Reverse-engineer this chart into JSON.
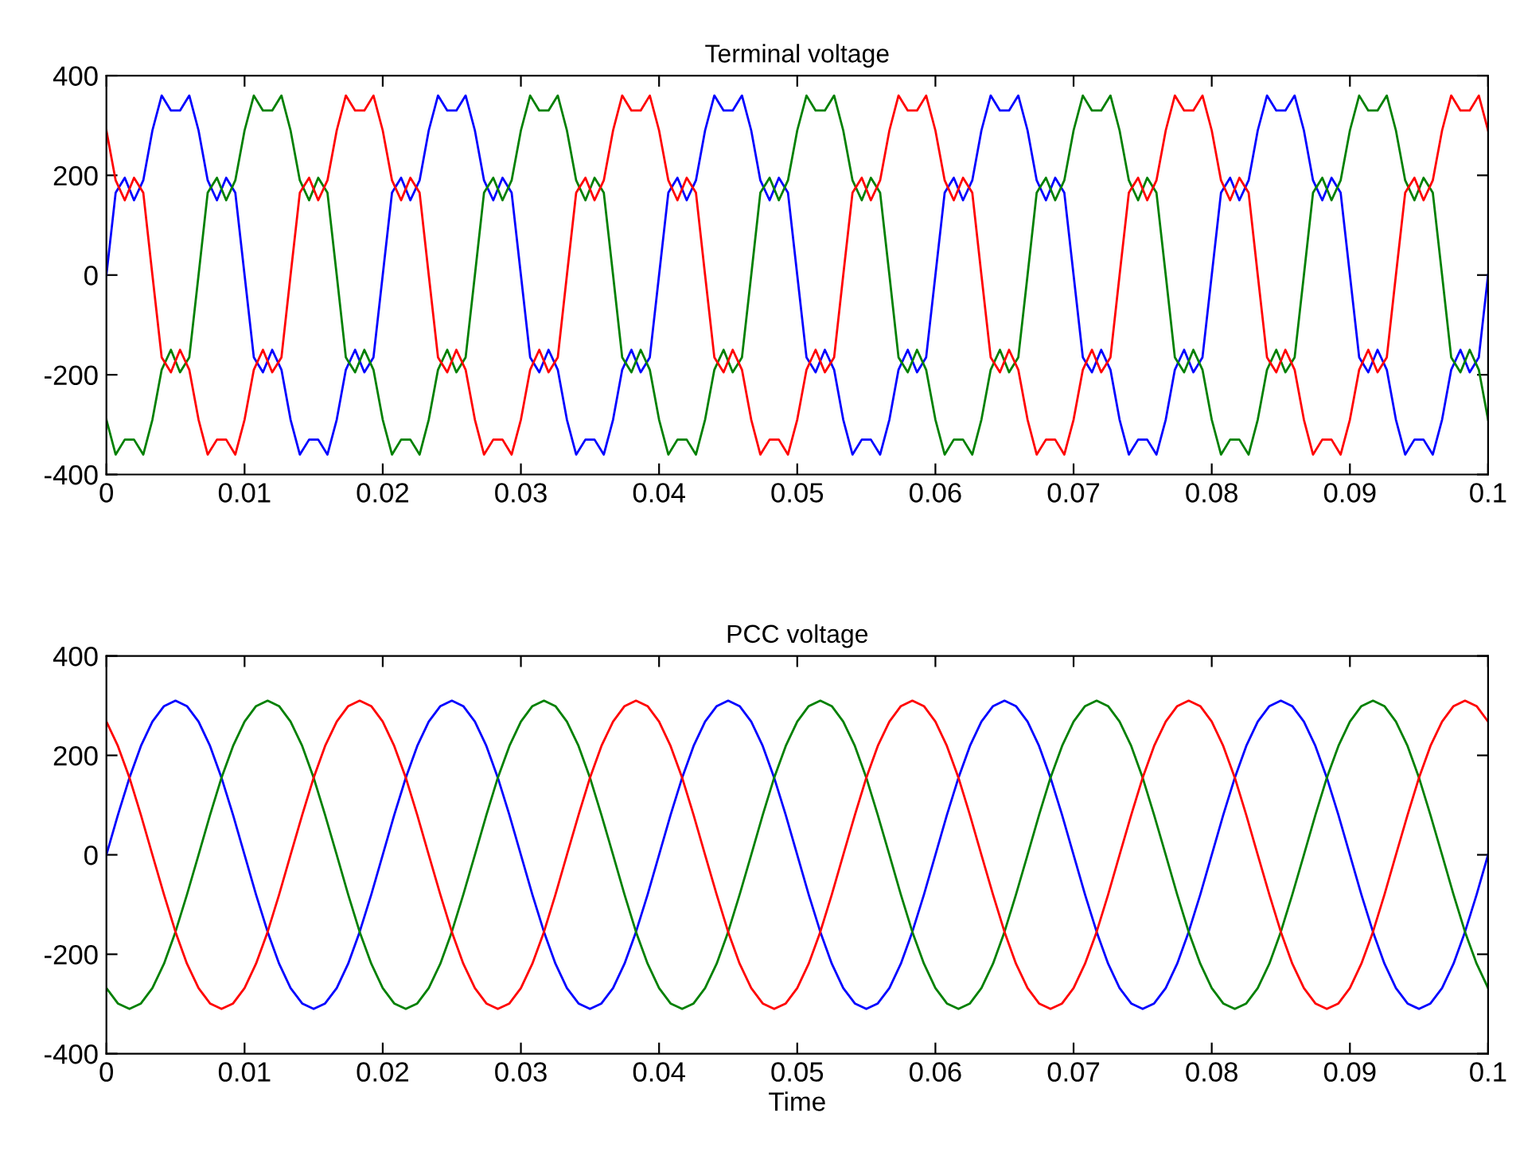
{
  "chart_data": [
    {
      "type": "line",
      "title": "Terminal voltage",
      "x": [
        0,
        0.00067,
        0.00133,
        0.002,
        0.00267,
        0.00333,
        0.004,
        0.00467,
        0.00533,
        0.006,
        0.00667,
        0.00733,
        0.008,
        0.00867,
        0.00933,
        0.01,
        0.01067,
        0.01133,
        0.012,
        0.01267,
        0.01333,
        0.014,
        0.01467,
        0.01533,
        0.016,
        0.01667,
        0.01733,
        0.018,
        0.01867,
        0.01933,
        0.02,
        0.02067,
        0.02133,
        0.022,
        0.02267,
        0.02333,
        0.024,
        0.02467,
        0.02533,
        0.026,
        0.02667,
        0.02733,
        0.028,
        0.02867,
        0.02933,
        0.03,
        0.03067,
        0.03133,
        0.032,
        0.03267,
        0.03333,
        0.034,
        0.03467,
        0.03533,
        0.036,
        0.03667,
        0.03733,
        0.038,
        0.03867,
        0.03933,
        0.04,
        0.04067,
        0.04133,
        0.042,
        0.04267,
        0.04333,
        0.044,
        0.04467,
        0.04533,
        0.046,
        0.04667,
        0.04733,
        0.048,
        0.04867,
        0.04933,
        0.05,
        0.05067,
        0.05133,
        0.052,
        0.05267,
        0.05333,
        0.054,
        0.05467,
        0.05533,
        0.056,
        0.05667,
        0.05733,
        0.058,
        0.05867,
        0.05933,
        0.06,
        0.06067,
        0.06133,
        0.062,
        0.06267,
        0.06333,
        0.064,
        0.06467,
        0.06533,
        0.066,
        0.06667,
        0.06733,
        0.068,
        0.06867,
        0.06933,
        0.07,
        0.07067,
        0.07133,
        0.072,
        0.07267,
        0.07333,
        0.074,
        0.07467,
        0.07533,
        0.076,
        0.07667,
        0.07733,
        0.078,
        0.07867,
        0.07933,
        0.08,
        0.08067,
        0.08133,
        0.082,
        0.08267,
        0.08333,
        0.084,
        0.08467,
        0.08533,
        0.086,
        0.08667,
        0.08733,
        0.088,
        0.08867,
        0.08933,
        0.09,
        0.09067,
        0.09133,
        0.092,
        0.09267,
        0.09333,
        0.094,
        0.09467,
        0.09533,
        0.096,
        0.09667,
        0.09733,
        0.098,
        0.09867,
        0.09933,
        0.1
      ],
      "series": [
        {
          "color": "#0000ff",
          "values": [
            0,
            165,
            195,
            150,
            190,
            290,
            360,
            330,
            330,
            360,
            290,
            190,
            150,
            195,
            165,
            0,
            -165,
            -195,
            -150,
            -190,
            -290,
            -360,
            -330,
            -330,
            -360,
            -290,
            -190,
            -150,
            -195,
            -165,
            0,
            165,
            195,
            150,
            190,
            290,
            360,
            330,
            330,
            360,
            290,
            190,
            150,
            195,
            165,
            0,
            -165,
            -195,
            -150,
            -190,
            -290,
            -360,
            -330,
            -330,
            -360,
            -290,
            -190,
            -150,
            -195,
            -165,
            0,
            165,
            195,
            150,
            190,
            290,
            360,
            330,
            330,
            360,
            290,
            190,
            150,
            195,
            165,
            0,
            -165,
            -195,
            -150,
            -190,
            -290,
            -360,
            -330,
            -330,
            -360,
            -290,
            -190,
            -150,
            -195,
            -165,
            0,
            165,
            195,
            150,
            190,
            290,
            360,
            330,
            330,
            360,
            290,
            190,
            150,
            195,
            165,
            0,
            -165,
            -195,
            -150,
            -190,
            -290,
            -360,
            -330,
            -330,
            -360,
            -290,
            -190,
            -150,
            -195,
            -165,
            0,
            165,
            195,
            150,
            190,
            290,
            360,
            330,
            330,
            360,
            290,
            190,
            150,
            195,
            165,
            0,
            -165,
            -195,
            -150,
            -190,
            -290,
            -360,
            -330,
            -330,
            -360,
            -290,
            -190,
            -150,
            -195,
            -165,
            0
          ]
        },
        {
          "color": "#008000",
          "values": [
            -290,
            -360,
            -330,
            -330,
            -360,
            -290,
            -190,
            -150,
            -195,
            -165,
            0,
            165,
            195,
            150,
            190,
            290,
            360,
            330,
            330,
            360,
            290,
            190,
            150,
            195,
            165,
            0,
            -165,
            -195,
            -150,
            -190,
            -290,
            -360,
            -330,
            -330,
            -360,
            -290,
            -190,
            -150,
            -195,
            -165,
            0,
            165,
            195,
            150,
            190,
            290,
            360,
            330,
            330,
            360,
            290,
            190,
            150,
            195,
            165,
            0,
            -165,
            -195,
            -150,
            -190,
            -290,
            -360,
            -330,
            -330,
            -360,
            -290,
            -190,
            -150,
            -195,
            -165,
            0,
            165,
            195,
            150,
            190,
            290,
            360,
            330,
            330,
            360,
            290,
            190,
            150,
            195,
            165,
            0,
            -165,
            -195,
            -150,
            -190,
            -290,
            -360,
            -330,
            -330,
            -360,
            -290,
            -190,
            -150,
            -195,
            -165,
            0,
            165,
            195,
            150,
            190,
            290,
            360,
            330,
            330,
            360,
            290,
            190,
            150,
            195,
            165,
            0,
            -165,
            -195,
            -150,
            -190,
            -290,
            -360,
            -330,
            -330,
            -360,
            -290,
            -190,
            -150,
            -195,
            -165,
            0,
            165,
            195,
            150,
            190,
            290,
            360,
            330,
            330,
            360,
            290,
            190,
            150,
            195,
            165,
            0,
            -165,
            -195,
            -150,
            -190,
            -290
          ]
        },
        {
          "color": "#ff0000",
          "values": [
            290,
            190,
            150,
            195,
            165,
            0,
            -165,
            -195,
            -150,
            -190,
            -290,
            -360,
            -330,
            -330,
            -360,
            -290,
            -190,
            -150,
            -195,
            -165,
            0,
            165,
            195,
            150,
            190,
            290,
            360,
            330,
            330,
            360,
            290,
            190,
            150,
            195,
            165,
            0,
            -165,
            -195,
            -150,
            -190,
            -290,
            -360,
            -330,
            -330,
            -360,
            -290,
            -190,
            -150,
            -195,
            -165,
            0,
            165,
            195,
            150,
            190,
            290,
            360,
            330,
            330,
            360,
            290,
            190,
            150,
            195,
            165,
            0,
            -165,
            -195,
            -150,
            -190,
            -290,
            -360,
            -330,
            -330,
            -360,
            -290,
            -190,
            -150,
            -195,
            -165,
            0,
            165,
            195,
            150,
            190,
            290,
            360,
            330,
            330,
            360,
            290,
            190,
            150,
            195,
            165,
            0,
            -165,
            -195,
            -150,
            -190,
            -290,
            -360,
            -330,
            -330,
            -360,
            -290,
            -190,
            -150,
            -195,
            -165,
            0,
            165,
            195,
            150,
            190,
            290,
            360,
            330,
            330,
            360,
            290,
            190,
            150,
            195,
            165,
            0,
            -165,
            -195,
            -150,
            -190,
            -290,
            -360,
            -330,
            -330,
            -360,
            -290,
            -190,
            -150,
            -195,
            -165,
            0,
            165,
            195,
            150,
            190,
            290,
            360,
            330,
            330,
            360,
            290
          ]
        }
      ],
      "xlim": [
        0,
        0.1
      ],
      "ylim": [
        -400,
        400
      ],
      "xticks": [
        0,
        0.01,
        0.02,
        0.03,
        0.04,
        0.05,
        0.06,
        0.07,
        0.08,
        0.09,
        0.1
      ],
      "yticks": [
        -400,
        -200,
        0,
        200,
        400
      ]
    },
    {
      "type": "line",
      "title": "PCC voltage",
      "xlabel": "Time",
      "x": [
        0,
        0.00083,
        0.00167,
        0.0025,
        0.00333,
        0.00417,
        0.005,
        0.00583,
        0.00667,
        0.0075,
        0.00833,
        0.00917,
        0.01,
        0.01083,
        0.01167,
        0.0125,
        0.01333,
        0.01417,
        0.015,
        0.01583,
        0.01667,
        0.0175,
        0.01833,
        0.01917,
        0.02,
        0.02083,
        0.02167,
        0.0225,
        0.02333,
        0.02417,
        0.025,
        0.02583,
        0.02667,
        0.0275,
        0.02833,
        0.02917,
        0.03,
        0.03083,
        0.03167,
        0.0325,
        0.03333,
        0.03417,
        0.035,
        0.03583,
        0.03667,
        0.0375,
        0.03833,
        0.03917,
        0.04,
        0.04083,
        0.04167,
        0.0425,
        0.04333,
        0.04417,
        0.045,
        0.04583,
        0.04667,
        0.0475,
        0.04833,
        0.04917,
        0.05,
        0.05083,
        0.05167,
        0.0525,
        0.05333,
        0.05417,
        0.055,
        0.05583,
        0.05667,
        0.0575,
        0.05833,
        0.05917,
        0.06,
        0.06083,
        0.06167,
        0.0625,
        0.06333,
        0.06417,
        0.065,
        0.06583,
        0.06667,
        0.0675,
        0.06833,
        0.06917,
        0.07,
        0.07083,
        0.07167,
        0.0725,
        0.07333,
        0.07417,
        0.075,
        0.07583,
        0.07667,
        0.0775,
        0.07833,
        0.07917,
        0.08,
        0.08083,
        0.08167,
        0.0825,
        0.08333,
        0.08417,
        0.085,
        0.08583,
        0.08667,
        0.0875,
        0.08833,
        0.08917,
        0.09,
        0.09083,
        0.09167,
        0.0925,
        0.09333,
        0.09417,
        0.095,
        0.09583,
        0.09667,
        0.0975,
        0.09833,
        0.09917,
        0.1
      ],
      "series": [
        {
          "color": "#0000ff",
          "values": [
            0,
            80,
            155,
            219,
            268,
            299,
            310,
            299,
            268,
            219,
            155,
            80,
            0,
            -80,
            -155,
            -219,
            -268,
            -299,
            -310,
            -299,
            -268,
            -219,
            -155,
            -80,
            0,
            80,
            155,
            219,
            268,
            299,
            310,
            299,
            268,
            219,
            155,
            80,
            0,
            -80,
            -155,
            -219,
            -268,
            -299,
            -310,
            -299,
            -268,
            -219,
            -155,
            -80,
            0,
            80,
            155,
            219,
            268,
            299,
            310,
            299,
            268,
            219,
            155,
            80,
            0,
            -80,
            -155,
            -219,
            -268,
            -299,
            -310,
            -299,
            -268,
            -219,
            -155,
            -80,
            0,
            80,
            155,
            219,
            268,
            299,
            310,
            299,
            268,
            219,
            155,
            80,
            0,
            -80,
            -155,
            -219,
            -268,
            -299,
            -310,
            -299,
            -268,
            -219,
            -155,
            -80,
            0,
            80,
            155,
            219,
            268,
            299,
            310,
            299,
            268,
            219,
            155,
            80,
            0,
            -80,
            -155,
            -219,
            -268,
            -299,
            -310,
            -299,
            -268,
            -219,
            -155,
            -80,
            0
          ]
        },
        {
          "color": "#008000",
          "values": [
            -268,
            -299,
            -310,
            -299,
            -268,
            -219,
            -155,
            -80,
            0,
            80,
            155,
            219,
            268,
            299,
            310,
            299,
            268,
            219,
            155,
            80,
            0,
            -80,
            -155,
            -219,
            -268,
            -299,
            -310,
            -299,
            -268,
            -219,
            -155,
            -80,
            0,
            80,
            155,
            219,
            268,
            299,
            310,
            299,
            268,
            219,
            155,
            80,
            0,
            -80,
            -155,
            -219,
            -268,
            -299,
            -310,
            -299,
            -268,
            -219,
            -155,
            -80,
            0,
            80,
            155,
            219,
            268,
            299,
            310,
            299,
            268,
            219,
            155,
            80,
            0,
            -80,
            -155,
            -219,
            -268,
            -299,
            -310,
            -299,
            -268,
            -219,
            -155,
            -80,
            0,
            80,
            155,
            219,
            268,
            299,
            310,
            299,
            268,
            219,
            155,
            80,
            0,
            -80,
            -155,
            -219,
            -268,
            -299,
            -310,
            -299,
            -268,
            -219,
            -155,
            -80,
            0,
            80,
            155,
            219,
            268,
            299,
            310,
            299,
            268,
            219,
            155,
            80,
            0,
            -80,
            -155,
            -219,
            -268
          ]
        },
        {
          "color": "#ff0000",
          "values": [
            268,
            219,
            155,
            80,
            0,
            -80,
            -155,
            -219,
            -268,
            -299,
            -310,
            -299,
            -268,
            -219,
            -155,
            -80,
            0,
            80,
            155,
            219,
            268,
            299,
            310,
            299,
            268,
            219,
            155,
            80,
            0,
            -80,
            -155,
            -219,
            -268,
            -299,
            -310,
            -299,
            -268,
            -219,
            -155,
            -80,
            0,
            80,
            155,
            219,
            268,
            299,
            310,
            299,
            268,
            219,
            155,
            80,
            0,
            -80,
            -155,
            -219,
            -268,
            -299,
            -310,
            -299,
            -268,
            -219,
            -155,
            -80,
            0,
            80,
            155,
            219,
            268,
            299,
            310,
            299,
            268,
            219,
            155,
            80,
            0,
            -80,
            -155,
            -219,
            -268,
            -299,
            -310,
            -299,
            -268,
            -219,
            -155,
            -80,
            0,
            80,
            155,
            219,
            268,
            299,
            310,
            299,
            268,
            219,
            155,
            80,
            0,
            -80,
            -155,
            -219,
            -268,
            -299,
            -310,
            -299,
            -268,
            -219,
            -155,
            -80,
            0,
            80,
            155,
            219,
            268,
            299,
            310,
            299,
            268
          ]
        }
      ],
      "xlim": [
        0,
        0.1
      ],
      "ylim": [
        -400,
        400
      ],
      "xticks": [
        0,
        0.01,
        0.02,
        0.03,
        0.04,
        0.05,
        0.06,
        0.07,
        0.08,
        0.09,
        0.1
      ],
      "yticks": [
        -400,
        -200,
        0,
        200,
        400
      ]
    }
  ]
}
